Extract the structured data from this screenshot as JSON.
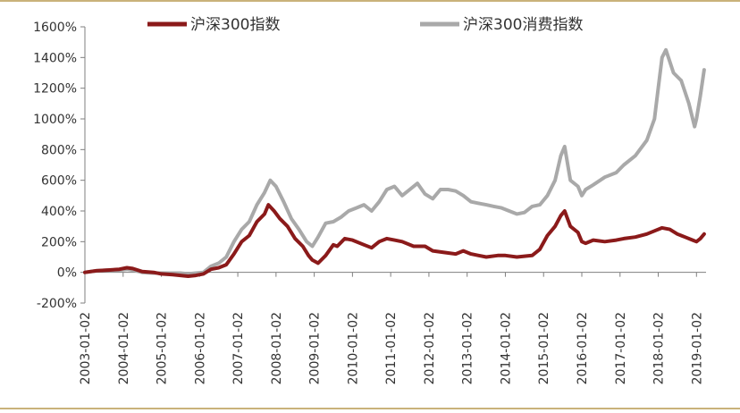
{
  "chart_data": {
    "type": "line",
    "title": "",
    "xlabel": "",
    "ylabel": "",
    "ylim": [
      -200,
      1600
    ],
    "y_tick_labels": [
      "-200%",
      "0%",
      "200%",
      "400%",
      "600%",
      "800%",
      "1000%",
      "1200%",
      "1400%",
      "1600%"
    ],
    "y_tick_values": [
      -200,
      0,
      200,
      400,
      600,
      800,
      1000,
      1200,
      1400,
      1600
    ],
    "x_tick_labels": [
      "2003-01-02",
      "2004-01-02",
      "2005-01-02",
      "2006-01-02",
      "2007-01-02",
      "2008-01-02",
      "2009-01-02",
      "2010-01-02",
      "2011-01-02",
      "2012-01-02",
      "2013-01-02",
      "2014-01-02",
      "2015-01-02",
      "2016-01-02",
      "2017-01-02",
      "2018-01-02",
      "2019-01-02"
    ],
    "x_tick_values": [
      2003,
      2004,
      2005,
      2006,
      2007,
      2008,
      2009,
      2010,
      2011,
      2012,
      2013,
      2014,
      2015,
      2016,
      2017,
      2018,
      2019
    ],
    "xlim": [
      2003,
      2019.25
    ],
    "grid": false,
    "legend_position": "top",
    "series": [
      {
        "name": "沪深300指数",
        "color": "#8b1a1a",
        "x": [
          2003.0,
          2003.3,
          2003.6,
          2003.9,
          2004.1,
          2004.25,
          2004.5,
          2004.8,
          2005.0,
          2005.3,
          2005.5,
          2005.7,
          2005.9,
          2006.1,
          2006.3,
          2006.5,
          2006.7,
          2006.9,
          2007.1,
          2007.3,
          2007.5,
          2007.7,
          2007.8,
          2007.95,
          2008.1,
          2008.3,
          2008.5,
          2008.7,
          2008.85,
          2008.95,
          2009.1,
          2009.3,
          2009.5,
          2009.6,
          2009.8,
          2010.0,
          2010.3,
          2010.5,
          2010.7,
          2010.9,
          2011.1,
          2011.3,
          2011.6,
          2011.9,
          2012.1,
          2012.4,
          2012.7,
          2012.9,
          2013.1,
          2013.3,
          2013.5,
          2013.8,
          2014.0,
          2014.3,
          2014.5,
          2014.7,
          2014.9,
          2015.1,
          2015.3,
          2015.45,
          2015.55,
          2015.7,
          2015.9,
          2016.0,
          2016.1,
          2016.3,
          2016.6,
          2016.9,
          2017.1,
          2017.4,
          2017.7,
          2017.9,
          2018.1,
          2018.3,
          2018.5,
          2018.7,
          2018.9,
          2019.0,
          2019.1,
          2019.2
        ],
        "y": [
          0,
          10,
          15,
          20,
          30,
          25,
          5,
          0,
          -10,
          -15,
          -20,
          -25,
          -20,
          -10,
          20,
          30,
          50,
          120,
          200,
          240,
          330,
          380,
          440,
          400,
          350,
          300,
          220,
          170,
          110,
          80,
          60,
          110,
          180,
          170,
          220,
          210,
          180,
          160,
          200,
          220,
          210,
          200,
          170,
          170,
          140,
          130,
          120,
          140,
          120,
          110,
          100,
          110,
          110,
          100,
          105,
          110,
          150,
          240,
          300,
          370,
          400,
          300,
          260,
          200,
          190,
          210,
          200,
          210,
          220,
          230,
          250,
          270,
          290,
          280,
          250,
          230,
          210,
          200,
          220,
          250
        ]
      },
      {
        "name": "沪深300消费指数",
        "color": "#a9a9a9",
        "x": [
          2003.0,
          2003.3,
          2003.6,
          2003.9,
          2004.1,
          2004.25,
          2004.5,
          2004.8,
          2005.0,
          2005.3,
          2005.5,
          2005.7,
          2005.9,
          2006.1,
          2006.3,
          2006.5,
          2006.7,
          2006.9,
          2007.1,
          2007.3,
          2007.5,
          2007.7,
          2007.85,
          2008.0,
          2008.2,
          2008.4,
          2008.6,
          2008.8,
          2008.95,
          2009.1,
          2009.3,
          2009.5,
          2009.7,
          2009.9,
          2010.1,
          2010.3,
          2010.5,
          2010.7,
          2010.9,
          2011.1,
          2011.3,
          2011.5,
          2011.7,
          2011.9,
          2012.1,
          2012.3,
          2012.5,
          2012.7,
          2012.9,
          2013.1,
          2013.3,
          2013.5,
          2013.7,
          2013.9,
          2014.1,
          2014.3,
          2014.5,
          2014.7,
          2014.9,
          2015.1,
          2015.3,
          2015.45,
          2015.55,
          2015.7,
          2015.9,
          2016.0,
          2016.1,
          2016.3,
          2016.6,
          2016.9,
          2017.1,
          2017.4,
          2017.7,
          2017.9,
          2018.0,
          2018.1,
          2018.2,
          2018.4,
          2018.6,
          2018.8,
          2018.95,
          2019.0,
          2019.1,
          2019.2
        ],
        "y": [
          0,
          10,
          15,
          15,
          20,
          15,
          0,
          -5,
          -5,
          -5,
          -5,
          -10,
          -5,
          0,
          40,
          60,
          100,
          200,
          280,
          330,
          440,
          520,
          600,
          560,
          460,
          350,
          280,
          200,
          170,
          230,
          320,
          330,
          360,
          400,
          420,
          440,
          400,
          460,
          540,
          560,
          500,
          540,
          580,
          510,
          480,
          540,
          540,
          530,
          500,
          460,
          450,
          440,
          430,
          420,
          400,
          380,
          390,
          430,
          440,
          500,
          600,
          760,
          820,
          600,
          560,
          500,
          540,
          570,
          620,
          650,
          700,
          760,
          860,
          1000,
          1200,
          1400,
          1450,
          1300,
          1250,
          1100,
          950,
          1000,
          1150,
          1320
        ]
      }
    ]
  },
  "colors": {
    "top_rule": "#c9b27a",
    "bottom_rule": "#c9b27a",
    "axis": "#7f7f7f",
    "text": "#333333"
  }
}
